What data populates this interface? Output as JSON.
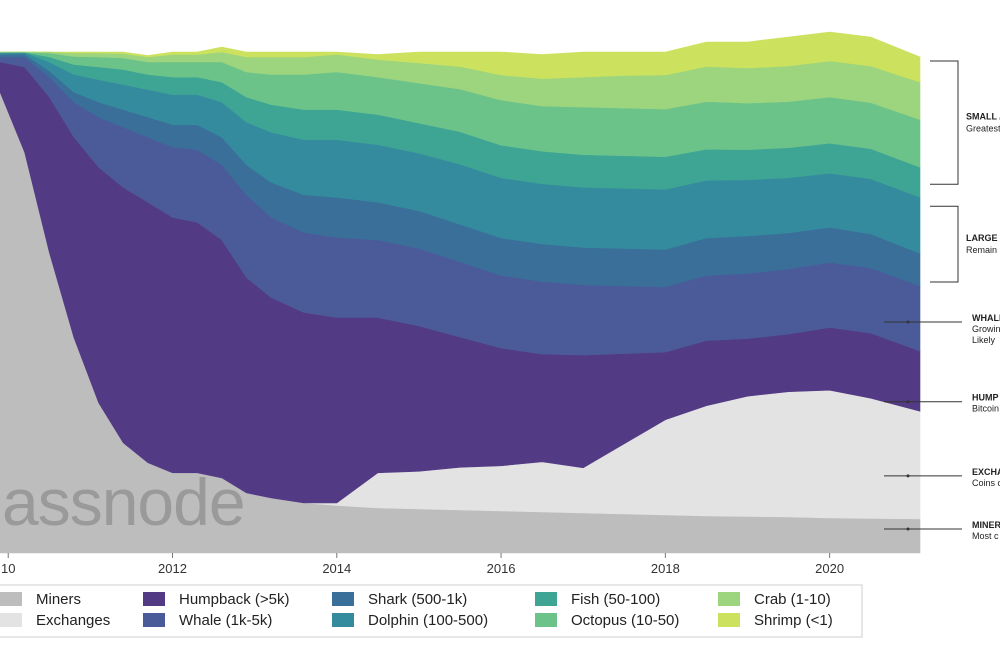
{
  "chart_data": {
    "type": "area",
    "stacking": "percent",
    "x_ticks": [
      "10",
      "2012",
      "2014",
      "2016",
      "2018",
      "2020"
    ],
    "x": [
      2009.9,
      2010.2,
      2010.5,
      2010.8,
      2011.1,
      2011.4,
      2011.7,
      2012.0,
      2012.3,
      2012.6,
      2012.9,
      2013.2,
      2013.6,
      2014.0,
      2014.5,
      2015.0,
      2015.5,
      2016.0,
      2016.5,
      2017.0,
      2017.5,
      2018.0,
      2018.5,
      2019.0,
      2019.5,
      2020.0,
      2020.5,
      2021.1
    ],
    "series": [
      {
        "name": "Miners",
        "color": "#bdbdbd",
        "values": [
          92,
          80,
          60,
          43,
          30,
          22,
          18,
          16,
          16,
          15,
          12,
          11,
          10,
          9.5,
          9,
          8.8,
          8.6,
          8.4,
          8.2,
          8,
          7.8,
          7.6,
          7.4,
          7.3,
          7.2,
          7,
          6.9,
          6.8
        ]
      },
      {
        "name": "Exchanges",
        "color": "#e3e3e3",
        "values": [
          0,
          0,
          0,
          0,
          0,
          0,
          0,
          0,
          0,
          0,
          0,
          0,
          0,
          0.5,
          7,
          7.5,
          8.5,
          9,
          10,
          9,
          14,
          19,
          22,
          24,
          25,
          25.5,
          24,
          21.5
        ]
      },
      {
        "name": "Humpback (>5k)",
        "color": "#533a84",
        "values": [
          6,
          17,
          31,
          40,
          47,
          51,
          52,
          51,
          50,
          47.5,
          43,
          40,
          38,
          37,
          31,
          29,
          26,
          23.5,
          21.5,
          22.5,
          18,
          13.5,
          13,
          11.5,
          11.5,
          12.5,
          13,
          12
        ]
      },
      {
        "name": "Whale (1k-5k)",
        "color": "#4b5b9a",
        "values": [
          1,
          2,
          4,
          7,
          10,
          12,
          13,
          14,
          14.5,
          15,
          16.5,
          16,
          16,
          16,
          15.5,
          15.5,
          15,
          14.5,
          14.5,
          14,
          13.5,
          13,
          13,
          13,
          13,
          13,
          13,
          13
        ]
      },
      {
        "name": "Shark (500-1k)",
        "color": "#3a6f9a",
        "values": [
          0.5,
          0.6,
          1.2,
          2,
          3,
          3.5,
          4,
          4.5,
          5,
          5.5,
          6,
          7,
          7.5,
          8,
          7.5,
          7.5,
          7.5,
          7.5,
          7.5,
          7.5,
          7.5,
          7.5,
          7.5,
          7.5,
          7.2,
          7,
          6.8,
          6.5
        ]
      },
      {
        "name": "Dolphin (100-500)",
        "color": "#358b9e",
        "values": [
          0.3,
          0.3,
          1.8,
          3.5,
          4.5,
          5,
          5.5,
          6,
          6,
          7,
          8.5,
          10,
          11,
          11.5,
          11.5,
          11.5,
          12,
          12,
          12,
          12,
          12,
          12,
          11.5,
          11.2,
          11,
          10.8,
          11,
          11.2
        ]
      },
      {
        "name": "Fish (50-100)",
        "color": "#3ea594",
        "values": [
          0.1,
          0.06,
          1,
          2,
          2.5,
          3,
          3,
          3.5,
          3.5,
          4,
          5,
          5.5,
          6,
          6,
          6,
          6,
          6.5,
          6.5,
          6.5,
          6.5,
          6.5,
          6.5,
          6.2,
          6,
          6,
          6,
          6,
          6
        ]
      },
      {
        "name": "Octopus (10-50)",
        "color": "#6cc38a",
        "values": [
          0.1,
          0.04,
          0.8,
          1.6,
          2,
          2.3,
          2.5,
          3,
          3,
          4,
          5,
          6,
          7,
          7.5,
          7.5,
          8,
          8.5,
          9,
          9,
          9.5,
          9.5,
          9.5,
          9.5,
          9.3,
          9.2,
          9.2,
          9.2,
          9.5
        ]
      },
      {
        "name": "Crab (1-10)",
        "color": "#9dd47e",
        "values": [
          0,
          0,
          0.2,
          0.7,
          0.8,
          0.9,
          1,
          1.5,
          1.5,
          2,
          3,
          3.5,
          3.5,
          3.5,
          3.5,
          4,
          4.5,
          5,
          5.5,
          6,
          6.5,
          6.8,
          7,
          7,
          7.1,
          7.2,
          7.3,
          7.5
        ]
      },
      {
        "name": "Shrimp (<1)",
        "color": "#cce25e",
        "values": [
          0,
          0,
          0,
          0.2,
          0.2,
          0.3,
          0.3,
          0.5,
          0.5,
          1,
          1,
          1,
          1,
          0.5,
          1,
          2.2,
          2.9,
          4.6,
          4.8,
          5,
          4.7,
          4.6,
          4.9,
          5.2,
          5.8,
          5.8,
          5.8,
          5
        ]
      }
    ],
    "watermark": "assnode",
    "annotations": [
      {
        "title": "SMALL /",
        "subtitle": "Greatest",
        "extra": "",
        "bracket": [
          73,
          100
        ]
      },
      {
        "title": "LARGE",
        "subtitle": "Remain",
        "extra": "",
        "bracket": [
          53.5,
          71
        ]
      },
      {
        "title": "WHALE",
        "subtitle": "Growin",
        "extra": "Likely",
        "at": 46.1
      },
      {
        "title": "HUMP",
        "subtitle": "Bitcoin",
        "extra": "",
        "at": 30.2
      },
      {
        "title": "EXCHA",
        "subtitle": "Coins c",
        "extra": "",
        "at": 15.4
      },
      {
        "title": "MINER",
        "subtitle": "Most c",
        "extra": "",
        "at": 4.8
      }
    ]
  }
}
